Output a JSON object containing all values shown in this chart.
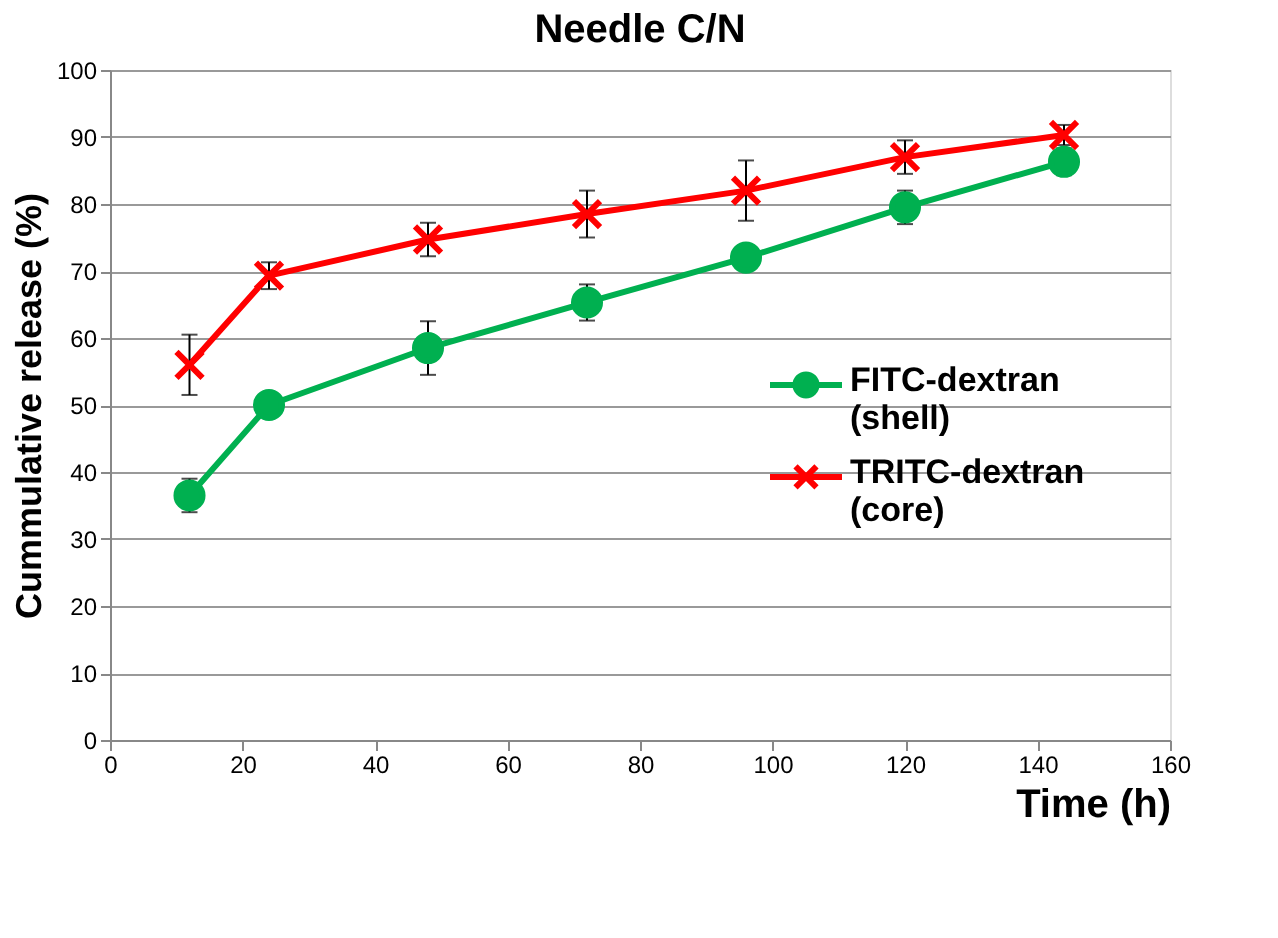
{
  "chart_data": {
    "type": "line",
    "title": "Needle C/N",
    "xlabel": "Time (h)",
    "ylabel": "Cummulative release (%)",
    "x": [
      12,
      24,
      48,
      72,
      96,
      120,
      144
    ],
    "series": [
      {
        "name": "FITC-dextran (shell)",
        "color": "#00b050",
        "marker": "circle",
        "values": [
          36.5,
          50,
          58.5,
          65.3,
          72,
          79.5,
          86.3
        ],
        "errors": [
          2.5,
          null,
          4,
          2.7,
          null,
          2.5,
          2
        ]
      },
      {
        "name": "TRITC-dextran (core)",
        "color": "#ff0000",
        "marker": "cross",
        "values": [
          56,
          69.3,
          74.7,
          78.5,
          82,
          87,
          90.3
        ],
        "errors": [
          4.5,
          2,
          2.5,
          3.5,
          4.5,
          2.5,
          1.5
        ]
      }
    ],
    "xlim": [
      0,
      160
    ],
    "xticks": [
      0,
      20,
      40,
      60,
      80,
      100,
      120,
      140,
      160
    ],
    "ylim": [
      0,
      100
    ],
    "yticks": [
      0,
      10,
      20,
      30,
      40,
      50,
      60,
      70,
      80,
      90,
      100
    ],
    "grid": "y",
    "legend": "right",
    "line_style": "solid"
  }
}
